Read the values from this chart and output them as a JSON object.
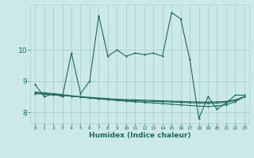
{
  "xlabel": "Humidex (Indice chaleur)",
  "background_color": "#cce8e8",
  "grid_color": "#aad0d0",
  "line_color": "#1a6b5a",
  "xlim": [
    -0.5,
    23.5
  ],
  "ylim": [
    7.65,
    11.45
  ],
  "yticks": [
    8,
    9,
    10
  ],
  "xticks": [
    0,
    1,
    2,
    3,
    4,
    5,
    6,
    7,
    8,
    9,
    10,
    11,
    12,
    13,
    14,
    15,
    16,
    17,
    18,
    19,
    20,
    21,
    22,
    23
  ],
  "main_x": [
    0,
    1,
    2,
    3,
    4,
    5,
    6,
    7,
    8,
    9,
    10,
    11,
    12,
    13,
    14,
    15,
    16,
    17,
    18,
    19,
    20,
    21,
    22,
    23
  ],
  "main_y": [
    8.9,
    8.5,
    8.6,
    8.5,
    9.9,
    8.6,
    9.0,
    11.1,
    9.8,
    10.0,
    9.8,
    9.9,
    9.85,
    9.9,
    9.8,
    11.2,
    11.0,
    9.7,
    7.8,
    8.5,
    8.1,
    8.3,
    8.55,
    8.55
  ],
  "flat1_x": [
    0,
    1,
    2,
    3,
    4,
    5,
    6,
    7,
    8,
    9,
    10,
    11,
    12,
    13,
    14,
    15,
    16,
    17,
    18,
    19,
    20,
    21,
    22,
    23
  ],
  "flat1_y": [
    8.6,
    8.58,
    8.56,
    8.54,
    8.52,
    8.5,
    8.48,
    8.46,
    8.44,
    8.42,
    8.41,
    8.4,
    8.39,
    8.38,
    8.37,
    8.36,
    8.35,
    8.34,
    8.33,
    8.33,
    8.34,
    8.35,
    8.4,
    8.5
  ],
  "flat2_x": [
    0,
    1,
    2,
    3,
    4,
    5,
    6,
    7,
    8,
    9,
    10,
    11,
    12,
    13,
    14,
    15,
    16,
    17,
    18,
    19,
    20,
    21,
    22,
    23
  ],
  "flat2_y": [
    8.62,
    8.6,
    8.57,
    8.55,
    8.52,
    8.49,
    8.46,
    8.44,
    8.42,
    8.4,
    8.38,
    8.37,
    8.36,
    8.35,
    8.34,
    8.33,
    8.32,
    8.31,
    8.3,
    8.29,
    8.3,
    8.32,
    8.38,
    8.5
  ],
  "flat3_x": [
    0,
    1,
    2,
    3,
    4,
    5,
    6,
    7,
    8,
    9,
    10,
    11,
    12,
    13,
    14,
    15,
    16,
    17,
    18,
    19,
    20,
    21,
    22,
    23
  ],
  "flat3_y": [
    8.65,
    8.63,
    8.6,
    8.57,
    8.53,
    8.5,
    8.46,
    8.43,
    8.41,
    8.38,
    8.36,
    8.34,
    8.32,
    8.3,
    8.28,
    8.26,
    8.24,
    8.22,
    8.2,
    8.19,
    8.21,
    8.24,
    8.34,
    8.5
  ]
}
